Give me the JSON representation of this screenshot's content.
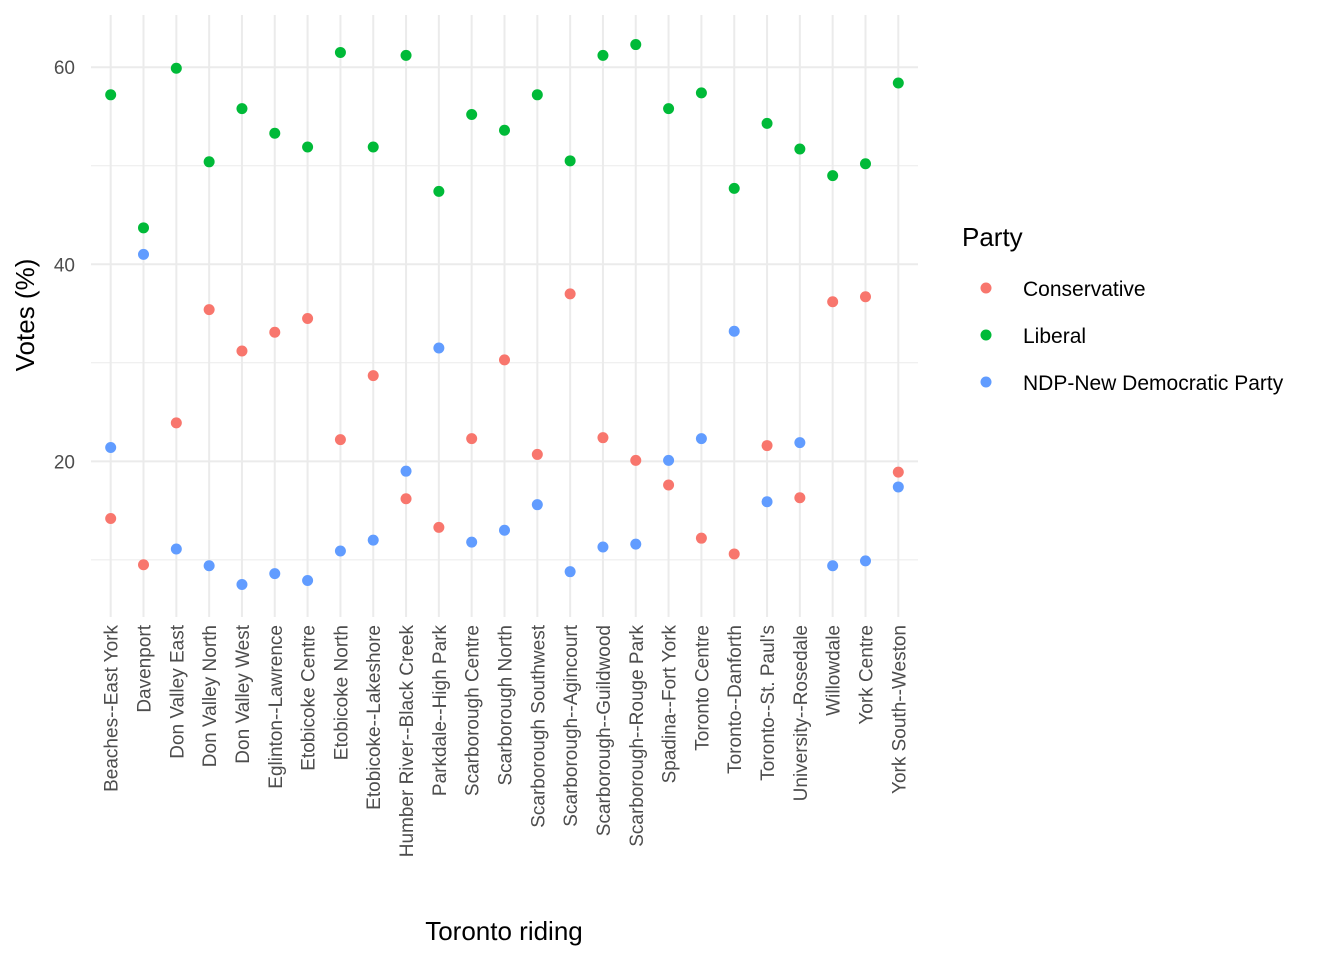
{
  "chart_data": {
    "type": "scatter",
    "xlabel": "Toronto riding",
    "ylabel": "Votes (%)",
    "ylim": [
      4.2,
      65.3
    ],
    "yticks": [
      20,
      40,
      60
    ],
    "grid": true,
    "legend": {
      "title": "Party",
      "placement": "right"
    },
    "categories": [
      "Beaches--East York",
      "Davenport",
      "Don Valley East",
      "Don Valley North",
      "Don Valley West",
      "Eglinton--Lawrence",
      "Etobicoke Centre",
      "Etobicoke North",
      "Etobicoke--Lakeshore",
      "Humber River--Black Creek",
      "Parkdale--High Park",
      "Scarborough Centre",
      "Scarborough North",
      "Scarborough Southwest",
      "Scarborough--Agincourt",
      "Scarborough--Guildwood",
      "Scarborough--Rouge Park",
      "Spadina--Fort York",
      "Toronto Centre",
      "Toronto--Danforth",
      "Toronto--St. Paul's",
      "University--Rosedale",
      "Willowdale",
      "York Centre",
      "York South--Weston"
    ],
    "series": [
      {
        "name": "Conservative",
        "color": "#F8766D",
        "values": [
          14.2,
          9.5,
          23.9,
          35.4,
          31.2,
          33.1,
          34.5,
          22.2,
          28.7,
          16.2,
          13.3,
          22.3,
          30.3,
          20.7,
          37.0,
          22.4,
          20.1,
          17.6,
          12.2,
          10.6,
          21.6,
          16.3,
          36.2,
          36.7,
          18.9
        ]
      },
      {
        "name": "Liberal",
        "color": "#00BA38",
        "values": [
          57.2,
          43.7,
          59.9,
          50.4,
          55.8,
          53.3,
          51.9,
          61.5,
          51.9,
          61.2,
          47.4,
          55.2,
          53.6,
          57.2,
          50.5,
          61.2,
          62.3,
          55.8,
          57.4,
          47.7,
          54.3,
          51.7,
          49.0,
          50.2,
          58.4
        ]
      },
      {
        "name": "NDP-New Democratic Party",
        "color": "#619CFF",
        "values": [
          21.4,
          41.0,
          11.1,
          9.4,
          7.5,
          8.6,
          7.9,
          10.9,
          12.0,
          19.0,
          31.5,
          11.8,
          13.0,
          15.6,
          8.8,
          11.3,
          11.6,
          20.1,
          22.3,
          33.2,
          15.9,
          21.9,
          9.4,
          9.9,
          17.4
        ]
      }
    ]
  }
}
